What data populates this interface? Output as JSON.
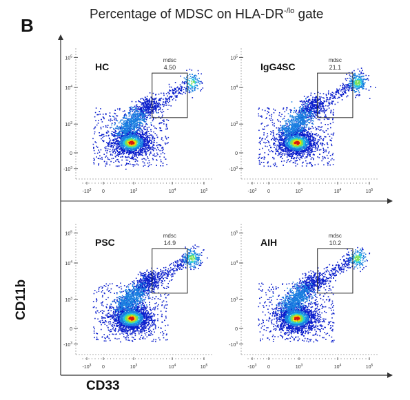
{
  "figure": {
    "panel_letter": "B",
    "title_main": "Percentage of MDSC on HLA-DR",
    "title_sup": "-/lo",
    "title_end": " gate",
    "y_label": "CD11b",
    "x_label": "CD33"
  },
  "chart_data": [
    {
      "type": "scatter",
      "subtype": "flow-cytometry-density",
      "name": "HC",
      "gate_label": "mdsc",
      "gate_value": "4.50",
      "x_axis": "CD33",
      "y_axis": "CD11b",
      "scale": "biexponential",
      "x_ticks": [
        "-10^3",
        "0",
        "10^3",
        "10^4",
        "10^5"
      ],
      "y_ticks": [
        "-10^3",
        "0",
        "10^3",
        "10^4",
        "10^5"
      ],
      "gate_x": [
        3000,
        30000
      ],
      "gate_y": [
        1500,
        30000
      ]
    },
    {
      "type": "scatter",
      "subtype": "flow-cytometry-density",
      "name": "IgG4SC",
      "gate_label": "mdsc",
      "gate_value": "21.1",
      "x_axis": "CD33",
      "y_axis": "CD11b",
      "scale": "biexponential",
      "x_ticks": [
        "-10^3",
        "0",
        "10^3",
        "10^4",
        "10^5"
      ],
      "y_ticks": [
        "-10^3",
        "0",
        "10^3",
        "10^4",
        "10^5"
      ],
      "gate_x": [
        3000,
        30000
      ],
      "gate_y": [
        1500,
        30000
      ]
    },
    {
      "type": "scatter",
      "subtype": "flow-cytometry-density",
      "name": "PSC",
      "gate_label": "mdsc",
      "gate_value": "14.9",
      "x_axis": "CD33",
      "y_axis": "CD11b",
      "scale": "biexponential",
      "x_ticks": [
        "-10^3",
        "0",
        "10^3",
        "10^4",
        "10^5"
      ],
      "y_ticks": [
        "-10^3",
        "0",
        "10^3",
        "10^4",
        "10^5"
      ],
      "gate_x": [
        3000,
        30000
      ],
      "gate_y": [
        1500,
        30000
      ]
    },
    {
      "type": "scatter",
      "subtype": "flow-cytometry-density",
      "name": "AIH",
      "gate_label": "mdsc",
      "gate_value": "10.2",
      "x_axis": "CD33",
      "y_axis": "CD11b",
      "scale": "biexponential",
      "x_ticks": [
        "-10^3",
        "0",
        "10^3",
        "10^4",
        "10^5"
      ],
      "y_ticks": [
        "-10^3",
        "0",
        "10^3",
        "10^4",
        "10^5"
      ],
      "gate_x": [
        3000,
        30000
      ],
      "gate_y": [
        1500,
        30000
      ]
    }
  ],
  "colors": {
    "density_low": "#0a1ecc",
    "density_mid": "#21c4e0",
    "density_high": "#ffd500",
    "density_peak": "#d41a0f",
    "axis": "#333333",
    "gate": "#222222"
  }
}
